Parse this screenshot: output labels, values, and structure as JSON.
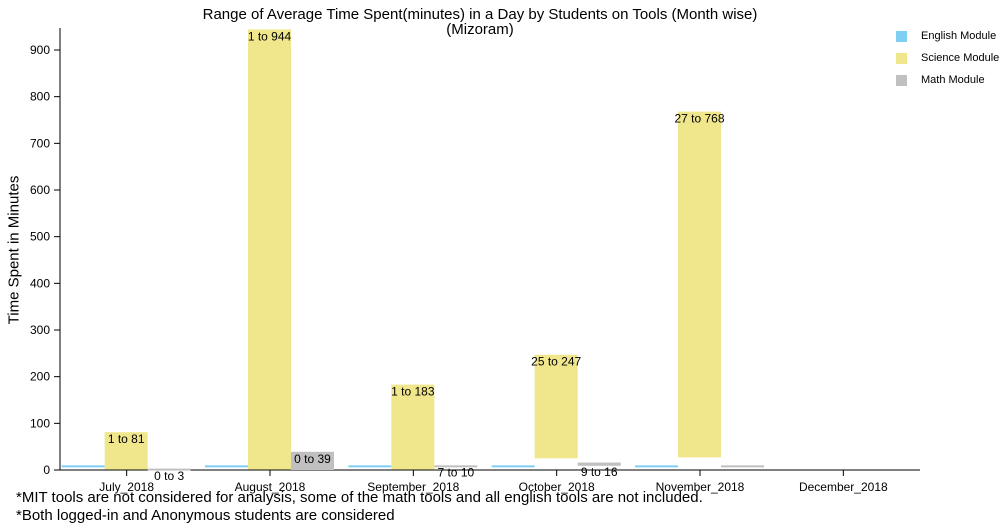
{
  "chart_data": {
    "type": "bar",
    "title": "Range of Average Time Spent(minutes) in a Day by Students on Tools (Month wise)",
    "subtitle": "(Mizoram)",
    "ylabel": "Time Spent in Minutes",
    "xlabel": "",
    "ylim": [
      0,
      950
    ],
    "yticks": [
      0,
      100,
      200,
      300,
      400,
      500,
      600,
      700,
      800,
      900
    ],
    "categories": [
      "July_2018",
      "August_2018",
      "September_2018",
      "October_2018",
      "November_2018",
      "December_2018"
    ],
    "legend_position": "top-right",
    "series": [
      {
        "name": "English Module",
        "color": "#7fcff2",
        "ranges": [
          [
            7,
            10
          ],
          [
            7,
            10
          ],
          [
            7,
            10
          ],
          [
            7,
            10
          ],
          [
            7,
            10
          ],
          null
        ],
        "labels": [
          "",
          "",
          "",
          "",
          "",
          ""
        ]
      },
      {
        "name": "Science Module",
        "color": "#f0e68c",
        "ranges": [
          [
            1,
            81
          ],
          [
            1,
            944
          ],
          [
            1,
            183
          ],
          [
            25,
            247
          ],
          [
            27,
            768
          ],
          null
        ],
        "labels": [
          "1 to 81",
          "1 to 944",
          "1 to 183",
          "25 to 247",
          "27 to 768",
          ""
        ]
      },
      {
        "name": "Math Module",
        "color": "#c0c0c0",
        "ranges": [
          [
            0,
            3
          ],
          [
            0,
            39
          ],
          [
            7,
            10
          ],
          [
            9,
            16
          ],
          [
            7,
            10
          ],
          null
        ],
        "labels": [
          "0 to 3",
          "0 to 39",
          "7 to 10",
          "9 to 16",
          "",
          ""
        ]
      }
    ]
  },
  "footnotes": [
    "*MIT tools are not considered for analysis, some of the math tools and all english tools are not included.",
    "*Both logged-in and Anonymous students are considered"
  ]
}
